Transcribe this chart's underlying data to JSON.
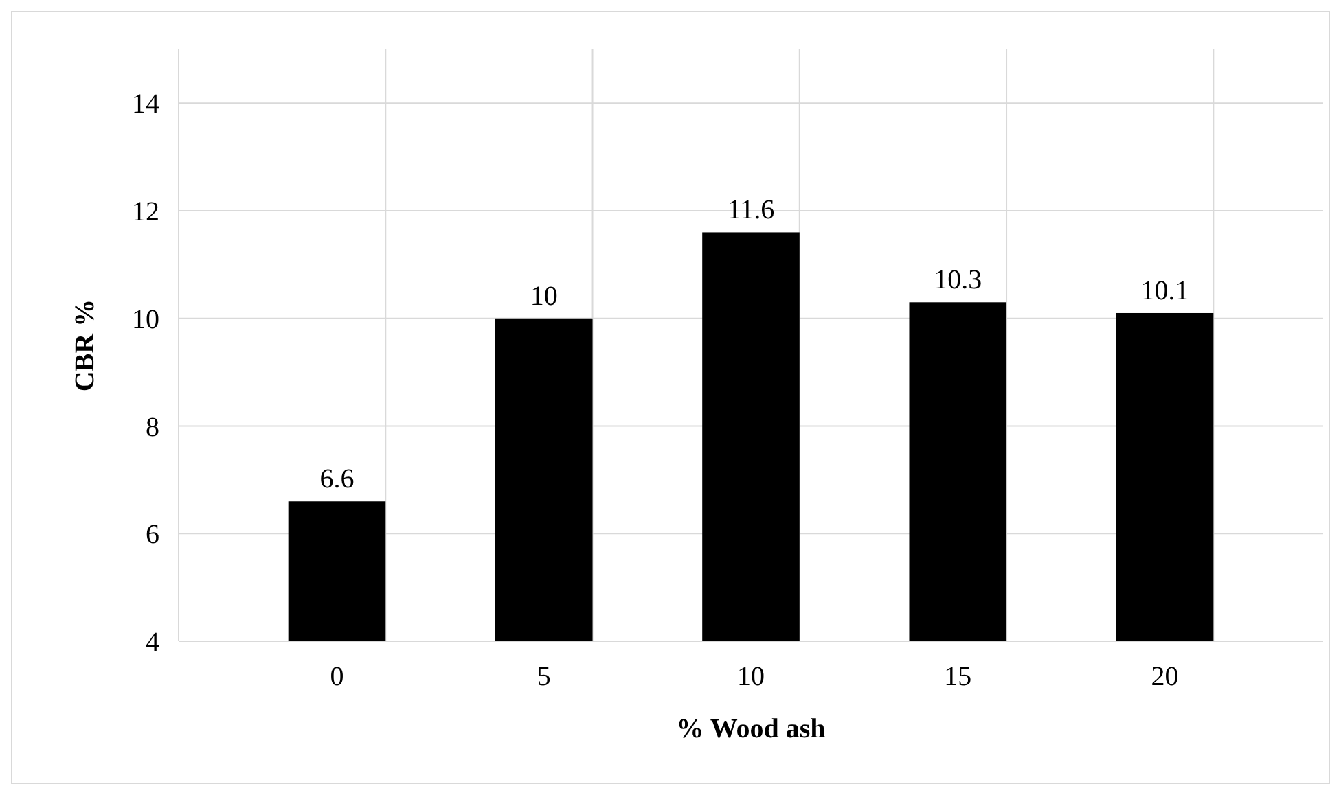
{
  "chart_data": {
    "type": "bar",
    "xlabel": "% Wood ash",
    "ylabel": "CBR %",
    "categories": [
      "0",
      "5",
      "10",
      "15",
      "20"
    ],
    "values": [
      6.6,
      10,
      11.6,
      10.3,
      10.1
    ],
    "color": "#000000",
    "ylim": [
      4,
      15
    ],
    "yticks": [
      4,
      6,
      8,
      10,
      12,
      14
    ],
    "grid": true,
    "data_labels": true
  }
}
